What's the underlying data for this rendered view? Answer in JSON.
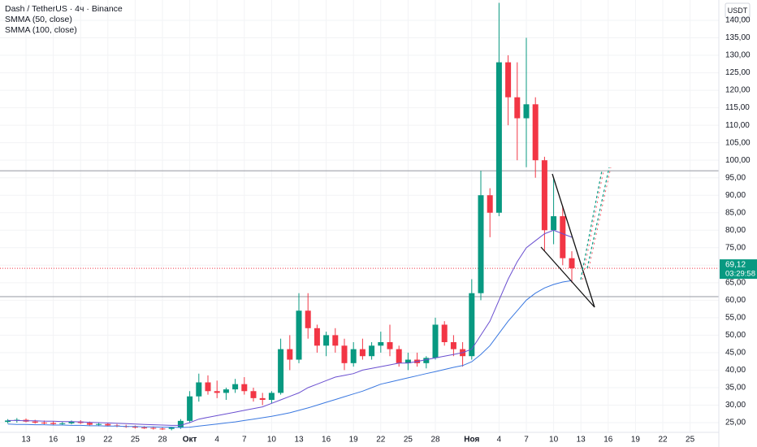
{
  "chart_data": {
    "type": "candlestick",
    "title": "Dash / TetherUS · 4ч · Binance",
    "currency": "USDT",
    "categories": [
      null,
      null,
      "13",
      null,
      null,
      "16",
      null,
      null,
      "19",
      null,
      null,
      "22",
      null,
      null,
      "25",
      null,
      null,
      "28",
      null,
      null,
      "Окт",
      null,
      null,
      "4",
      null,
      null,
      "7",
      null,
      null,
      "10",
      null,
      null,
      "13",
      null,
      null,
      "16",
      null,
      null,
      "19",
      null,
      null,
      "22",
      null,
      null,
      "25",
      null,
      null,
      "28",
      null,
      null,
      null,
      "Ноя",
      null,
      null,
      "4",
      null,
      null,
      "7",
      null,
      null,
      "10",
      null,
      null,
      "13",
      null,
      null,
      "16",
      null,
      null,
      "19",
      null,
      null,
      "22",
      null,
      null,
      "25",
      null
    ],
    "open": [
      25.2,
      25.6,
      25.8,
      25.3,
      25.0,
      24.9,
      24.6,
      24.8,
      25.3,
      24.9,
      24.4,
      24.6,
      24.2,
      24.0,
      23.8,
      23.6,
      23.5,
      23.3,
      23.2,
      23.6,
      25.5,
      32.5,
      36.5,
      34,
      33.5,
      34.5,
      36,
      34,
      32,
      31.5,
      33.5,
      46,
      43,
      57,
      52,
      47,
      50,
      47,
      42,
      46,
      44,
      47,
      48,
      46,
      42,
      43,
      42,
      43.5,
      53,
      48,
      46,
      44,
      62,
      90,
      85,
      128,
      118,
      112,
      116,
      100,
      80,
      84,
      72,
      null,
      null,
      null,
      null,
      null,
      null,
      null,
      null,
      null,
      null,
      null,
      null,
      null,
      null
    ],
    "high": [
      26,
      26.3,
      26.2,
      25.8,
      25.6,
      25.4,
      25.2,
      25.6,
      25.7,
      25.3,
      24.9,
      24.9,
      24.6,
      24.4,
      24.2,
      24.0,
      23.9,
      23.7,
      23.8,
      26,
      34,
      39,
      38.5,
      37,
      35,
      37.5,
      38,
      35,
      33.5,
      34,
      49,
      50,
      62,
      62,
      53,
      51,
      52,
      49,
      48,
      49,
      48,
      51,
      53,
      47,
      45,
      45,
      44,
      55,
      54,
      50,
      48,
      66,
      97,
      92,
      145,
      130,
      128,
      135,
      118,
      101,
      95,
      87,
      74,
      null,
      null,
      null,
      null,
      null,
      null,
      null,
      null,
      null,
      null,
      null,
      null,
      null,
      null
    ],
    "low": [
      24.8,
      25,
      25.1,
      24.7,
      24.5,
      24.3,
      24.2,
      24.5,
      24.6,
      24.2,
      24.0,
      23.9,
      23.7,
      23.5,
      23.3,
      23.2,
      23.0,
      22.9,
      22.8,
      23.2,
      25,
      31,
      33,
      32,
      31.5,
      33.5,
      33,
      31,
      30,
      30.5,
      33,
      40,
      42,
      49,
      45,
      44,
      45,
      40,
      41,
      43,
      43,
      45,
      44,
      41,
      40,
      41,
      40.5,
      43,
      47,
      44,
      41,
      43,
      60,
      78,
      84,
      110,
      100,
      98,
      95,
      74,
      76,
      70,
      65,
      null,
      null,
      null,
      null,
      null,
      null,
      null,
      null,
      null,
      null,
      null,
      null,
      null,
      null
    ],
    "close": [
      25.6,
      25.8,
      25.3,
      25.0,
      24.9,
      24.6,
      24.8,
      25.3,
      24.9,
      24.4,
      24.6,
      24.2,
      24.0,
      23.8,
      23.6,
      23.5,
      23.3,
      23.2,
      23.6,
      25.5,
      32.5,
      36.5,
      34,
      33.5,
      34.5,
      36,
      34,
      32,
      31.5,
      33.5,
      46,
      43,
      57,
      52,
      47,
      50,
      47,
      42,
      46,
      44,
      47,
      48,
      46,
      42,
      43,
      42,
      43.5,
      53,
      48,
      46,
      44,
      62,
      90,
      85,
      128,
      118,
      112,
      116,
      100,
      80,
      84,
      72,
      69.12,
      null,
      null,
      null,
      null,
      null,
      null,
      null,
      null,
      null,
      null,
      null,
      null,
      null,
      null
    ],
    "up_color": "#089981",
    "down_color": "#f23645",
    "lines": [
      {
        "name": "SMMA (50, close)",
        "color": "#6a4fd0",
        "values": [
          25.6,
          25.6,
          25.5,
          25.5,
          25.4,
          25.4,
          25.3,
          25.3,
          25.2,
          25.1,
          25.0,
          24.9,
          24.8,
          24.7,
          24.6,
          24.5,
          24.4,
          24.3,
          24.2,
          24.2,
          25,
          26,
          26.5,
          27,
          27.5,
          28,
          28.5,
          29,
          29.5,
          30.5,
          31.5,
          32.5,
          33.5,
          35,
          36,
          37,
          38,
          38.5,
          39,
          40,
          40.5,
          41,
          41.5,
          42,
          42,
          42.5,
          43,
          43.5,
          44,
          44.5,
          45,
          46,
          50,
          54,
          60,
          66,
          71,
          75,
          77,
          79,
          80,
          79,
          78,
          null,
          null,
          null,
          null,
          null,
          null,
          null,
          null,
          null,
          null,
          null,
          null,
          null,
          null
        ]
      },
      {
        "name": "SMMA (100, close)",
        "color": "#3a78e0",
        "values": [
          24.6,
          24.5,
          24.5,
          24.4,
          24.4,
          24.3,
          24.3,
          24.2,
          24.2,
          24.1,
          24.1,
          24.0,
          24.0,
          23.9,
          23.9,
          23.8,
          23.8,
          23.7,
          23.7,
          23.6,
          23.7,
          24,
          24.3,
          24.6,
          24.9,
          25.2,
          25.6,
          26,
          26.4,
          26.8,
          27.3,
          27.8,
          28.5,
          29.2,
          30,
          30.8,
          31.6,
          32.4,
          33.2,
          34,
          35,
          36,
          36.6,
          37.2,
          37.8,
          38.4,
          39,
          39.6,
          40.2,
          40.8,
          41.3,
          42.4,
          44.5,
          47,
          50.5,
          54,
          57,
          60,
          62,
          63.5,
          64.5,
          65.2,
          65.6,
          null,
          null,
          null,
          null,
          null,
          null,
          null,
          null,
          null,
          null,
          null,
          null,
          null,
          null
        ]
      }
    ],
    "levels": [
      97,
      61
    ],
    "last_price": {
      "value": 69.12,
      "label": "69,12"
    },
    "countdown": "03:29:58",
    "ylim": [
      22,
      142
    ],
    "yticks": [
      {
        "value": 25,
        "label": "25,00"
      },
      {
        "value": 30,
        "label": "30,00"
      },
      {
        "value": 35,
        "label": "35,00"
      },
      {
        "value": 40,
        "label": "40,00"
      },
      {
        "value": 45,
        "label": "45,00"
      },
      {
        "value": 50,
        "label": "50,00"
      },
      {
        "value": 55,
        "label": "55,00"
      },
      {
        "value": 60,
        "label": "60,00"
      },
      {
        "value": 65,
        "label": "65,00"
      },
      {
        "value": 70,
        "label": "70,00"
      },
      {
        "value": 75,
        "label": "75,00"
      },
      {
        "value": 80,
        "label": "80,00"
      },
      {
        "value": 85,
        "label": "85,00"
      },
      {
        "value": 90,
        "label": "90,00"
      },
      {
        "value": 95,
        "label": "95,00"
      },
      {
        "value": 100,
        "label": "100,00"
      },
      {
        "value": 105,
        "label": "105,00"
      },
      {
        "value": 110,
        "label": "110,00"
      },
      {
        "value": 115,
        "label": "115,00"
      },
      {
        "value": 120,
        "label": "120,00"
      },
      {
        "value": 125,
        "label": "125,00"
      },
      {
        "value": 130,
        "label": "130,00"
      },
      {
        "value": 135,
        "label": "135,00"
      },
      {
        "value": 140,
        "label": "140,00"
      }
    ],
    "grid": true
  }
}
